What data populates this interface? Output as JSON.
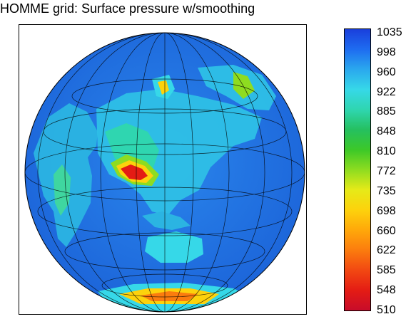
{
  "title": "HOMME grid: Surface pressure w/smoothing",
  "colorbar": {
    "labels": [
      "1035",
      "998",
      "960",
      "922",
      "885",
      "848",
      "810",
      "772",
      "735",
      "698",
      "660",
      "622",
      "585",
      "548",
      "510"
    ],
    "colors": [
      "#1a3fdc",
      "#1e6cf0",
      "#2aa8ee",
      "#36d8e8",
      "#2fd6b0",
      "#25c060",
      "#3cc828",
      "#8edc20",
      "#e6ea18",
      "#fdd20c",
      "#ffa80a",
      "#fb7c0e",
      "#f24812",
      "#e41c14",
      "#c80c2a"
    ]
  },
  "map": {
    "projection": "orthographic",
    "ocean_color": "#1e78e6",
    "land_low_color": "#35c4e0",
    "high_terrain_color": "#e01818"
  }
}
